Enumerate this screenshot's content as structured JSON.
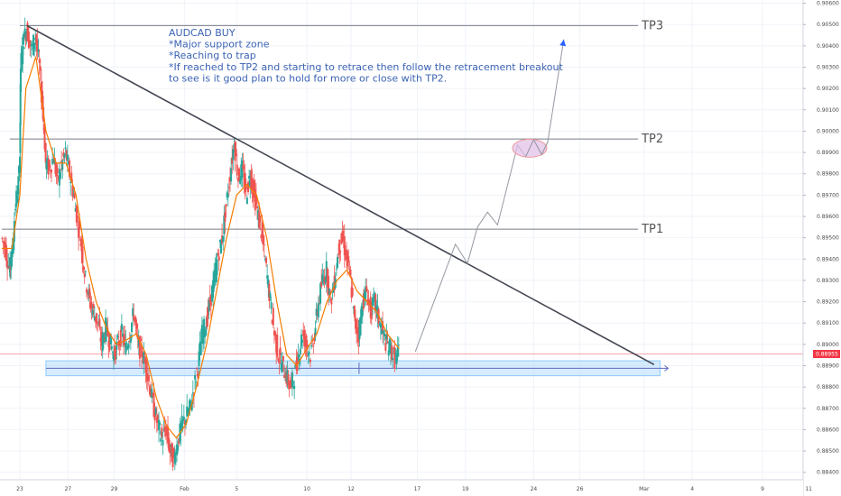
{
  "chart_data": {
    "type": "candlestick",
    "symbol": "AUDCAD",
    "annotation_lines": [
      "AUDCAD BUY",
      "*Major support zone",
      "*Reaching to trap",
      "*If reached to TP2 and starting to retrace then follow the retracement breakout",
      "to see is it good plan to hold for more or close with TP2."
    ],
    "y_axis": {
      "ylim": [
        0.88365,
        0.90615
      ],
      "ticks": [
        "0.90600",
        "0.90500",
        "0.90400",
        "0.90300",
        "0.90200",
        "0.90100",
        "0.90000",
        "0.89900",
        "0.89800",
        "0.89700",
        "0.89600",
        "0.89500",
        "0.89400",
        "0.89300",
        "0.89200",
        "0.89100",
        "0.89000",
        "0.88900",
        "0.88800",
        "0.88700",
        "0.88600",
        "0.88500",
        "0.88400"
      ],
      "current_price": "0.88955"
    },
    "x_axis": {
      "ticks": [
        {
          "label": "23",
          "x": 0.0
        },
        {
          "label": "27",
          "x": 2.4
        },
        {
          "label": "29",
          "x": 4.7
        },
        {
          "label": "Feb",
          "x": 8.2
        },
        {
          "label": "5",
          "x": 10.8
        },
        {
          "label": "10",
          "x": 14.3
        },
        {
          "label": "12",
          "x": 16.5
        },
        {
          "label": "17",
          "x": 19.8
        },
        {
          "label": "19",
          "x": 22.2
        },
        {
          "label": "24",
          "x": 25.6
        },
        {
          "label": "26",
          "x": 27.9
        },
        {
          "label": "Mar",
          "x": 31.1
        },
        {
          "label": "4",
          "x": 33.5
        },
        {
          "label": "9",
          "x": 37.0
        },
        {
          "label": "11",
          "x": 39.3
        }
      ]
    },
    "levels": [
      {
        "name": "TP3",
        "price": 0.90495
      },
      {
        "name": "TP2",
        "price": 0.89963
      },
      {
        "name": "TP1",
        "price": 0.8954
      }
    ],
    "support_zone": {
      "top": 0.88923,
      "bottom": 0.88853,
      "mid": 0.88888
    },
    "trendline": [
      {
        "x": 0.35,
        "y": 0.90495
      },
      {
        "x": 31.6,
        "y": 0.88905
      }
    ],
    "projection_path": [
      {
        "x": 19.7,
        "y": 0.88965
      },
      {
        "x": 21.7,
        "y": 0.8947
      },
      {
        "x": 22.3,
        "y": 0.8938
      },
      {
        "x": 22.8,
        "y": 0.8955
      },
      {
        "x": 23.3,
        "y": 0.8962
      },
      {
        "x": 23.8,
        "y": 0.8956
      },
      {
        "x": 24.8,
        "y": 0.89935
      },
      {
        "x": 25.2,
        "y": 0.8988
      },
      {
        "x": 25.6,
        "y": 0.8996
      },
      {
        "x": 26.0,
        "y": 0.8989
      },
      {
        "x": 26.3,
        "y": 0.8995
      },
      {
        "x": 27.1,
        "y": 0.9043
      }
    ],
    "ellipse": {
      "x": 25.4,
      "y": 0.8992
    },
    "price_series": [
      {
        "x": -0.9,
        "y": 0.895
      },
      {
        "x": -0.7,
        "y": 0.8945
      },
      {
        "x": -0.5,
        "y": 0.8935
      },
      {
        "x": -0.4,
        "y": 0.894
      },
      {
        "x": -0.2,
        "y": 0.8965
      },
      {
        "x": 0.0,
        "y": 0.898
      },
      {
        "x": 0.05,
        "y": 0.903
      },
      {
        "x": 0.2,
        "y": 0.9042
      },
      {
        "x": 0.35,
        "y": 0.9048
      },
      {
        "x": 0.6,
        "y": 0.9038
      },
      {
        "x": 0.8,
        "y": 0.9045
      },
      {
        "x": 1.0,
        "y": 0.903
      },
      {
        "x": 1.2,
        "y": 0.9005
      },
      {
        "x": 1.3,
        "y": 0.8985
      },
      {
        "x": 1.5,
        "y": 0.8982
      },
      {
        "x": 1.7,
        "y": 0.8988
      },
      {
        "x": 1.9,
        "y": 0.8976
      },
      {
        "x": 2.1,
        "y": 0.8984
      },
      {
        "x": 2.3,
        "y": 0.899
      },
      {
        "x": 2.5,
        "y": 0.898
      },
      {
        "x": 2.7,
        "y": 0.897
      },
      {
        "x": 2.9,
        "y": 0.8958
      },
      {
        "x": 3.1,
        "y": 0.8945
      },
      {
        "x": 3.3,
        "y": 0.893
      },
      {
        "x": 3.5,
        "y": 0.892
      },
      {
        "x": 3.7,
        "y": 0.8915
      },
      {
        "x": 3.9,
        "y": 0.891
      },
      {
        "x": 4.1,
        "y": 0.89
      },
      {
        "x": 4.3,
        "y": 0.8908
      },
      {
        "x": 4.5,
        "y": 0.8902
      },
      {
        "x": 4.7,
        "y": 0.8895
      },
      {
        "x": 4.9,
        "y": 0.89
      },
      {
        "x": 5.1,
        "y": 0.8905
      },
      {
        "x": 5.3,
        "y": 0.8898
      },
      {
        "x": 5.5,
        "y": 0.8905
      },
      {
        "x": 5.7,
        "y": 0.8915
      },
      {
        "x": 5.9,
        "y": 0.89
      },
      {
        "x": 6.1,
        "y": 0.8896
      },
      {
        "x": 6.3,
        "y": 0.889
      },
      {
        "x": 6.5,
        "y": 0.888
      },
      {
        "x": 6.7,
        "y": 0.887
      },
      {
        "x": 6.9,
        "y": 0.8862
      },
      {
        "x": 7.1,
        "y": 0.8856
      },
      {
        "x": 7.3,
        "y": 0.886
      },
      {
        "x": 7.5,
        "y": 0.885
      },
      {
        "x": 7.7,
        "y": 0.8846
      },
      {
        "x": 7.9,
        "y": 0.8855
      },
      {
        "x": 8.1,
        "y": 0.8862
      },
      {
        "x": 8.3,
        "y": 0.8866
      },
      {
        "x": 8.5,
        "y": 0.887
      },
      {
        "x": 8.7,
        "y": 0.888
      },
      {
        "x": 8.9,
        "y": 0.889
      },
      {
        "x": 9.1,
        "y": 0.8905
      },
      {
        "x": 9.3,
        "y": 0.891
      },
      {
        "x": 9.5,
        "y": 0.892
      },
      {
        "x": 9.7,
        "y": 0.893
      },
      {
        "x": 9.9,
        "y": 0.8942
      },
      {
        "x": 10.1,
        "y": 0.895
      },
      {
        "x": 10.3,
        "y": 0.8965
      },
      {
        "x": 10.5,
        "y": 0.898
      },
      {
        "x": 10.7,
        "y": 0.8995
      },
      {
        "x": 10.9,
        "y": 0.8978
      },
      {
        "x": 11.1,
        "y": 0.8982
      },
      {
        "x": 11.3,
        "y": 0.897
      },
      {
        "x": 11.5,
        "y": 0.898
      },
      {
        "x": 11.7,
        "y": 0.897
      },
      {
        "x": 11.9,
        "y": 0.896
      },
      {
        "x": 12.1,
        "y": 0.895
      },
      {
        "x": 12.3,
        "y": 0.8935
      },
      {
        "x": 12.5,
        "y": 0.892
      },
      {
        "x": 12.7,
        "y": 0.8905
      },
      {
        "x": 12.9,
        "y": 0.8895
      },
      {
        "x": 13.1,
        "y": 0.889
      },
      {
        "x": 13.3,
        "y": 0.8885
      },
      {
        "x": 13.5,
        "y": 0.888
      },
      {
        "x": 13.7,
        "y": 0.8885
      },
      {
        "x": 13.9,
        "y": 0.8895
      },
      {
        "x": 14.1,
        "y": 0.8905
      },
      {
        "x": 14.3,
        "y": 0.89
      },
      {
        "x": 14.5,
        "y": 0.8895
      },
      {
        "x": 14.7,
        "y": 0.8905
      },
      {
        "x": 14.9,
        "y": 0.892
      },
      {
        "x": 15.1,
        "y": 0.893
      },
      {
        "x": 15.3,
        "y": 0.8935
      },
      {
        "x": 15.5,
        "y": 0.892
      },
      {
        "x": 15.7,
        "y": 0.893
      },
      {
        "x": 15.9,
        "y": 0.8945
      },
      {
        "x": 16.1,
        "y": 0.895
      },
      {
        "x": 16.3,
        "y": 0.894
      },
      {
        "x": 16.5,
        "y": 0.893
      },
      {
        "x": 16.7,
        "y": 0.891
      },
      {
        "x": 16.9,
        "y": 0.8905
      },
      {
        "x": 17.1,
        "y": 0.892
      },
      {
        "x": 17.3,
        "y": 0.8925
      },
      {
        "x": 17.5,
        "y": 0.8915
      },
      {
        "x": 17.7,
        "y": 0.892
      },
      {
        "x": 17.9,
        "y": 0.8912
      },
      {
        "x": 18.1,
        "y": 0.8905
      },
      {
        "x": 18.3,
        "y": 0.89
      },
      {
        "x": 18.5,
        "y": 0.8898
      },
      {
        "x": 18.7,
        "y": 0.8893
      },
      {
        "x": 18.9,
        "y": 0.8896
      }
    ],
    "moving_average": [
      {
        "x": -0.9,
        "y": 0.8945
      },
      {
        "x": -0.4,
        "y": 0.8945
      },
      {
        "x": 0.0,
        "y": 0.897
      },
      {
        "x": 0.3,
        "y": 0.902
      },
      {
        "x": 0.8,
        "y": 0.9035
      },
      {
        "x": 1.3,
        "y": 0.9
      },
      {
        "x": 1.8,
        "y": 0.8985
      },
      {
        "x": 2.3,
        "y": 0.8985
      },
      {
        "x": 2.8,
        "y": 0.897
      },
      {
        "x": 3.3,
        "y": 0.894
      },
      {
        "x": 3.8,
        "y": 0.892
      },
      {
        "x": 4.3,
        "y": 0.8908
      },
      {
        "x": 4.8,
        "y": 0.89
      },
      {
        "x": 5.3,
        "y": 0.8902
      },
      {
        "x": 5.8,
        "y": 0.8905
      },
      {
        "x": 6.3,
        "y": 0.8895
      },
      {
        "x": 6.8,
        "y": 0.8875
      },
      {
        "x": 7.3,
        "y": 0.8862
      },
      {
        "x": 7.8,
        "y": 0.8856
      },
      {
        "x": 8.3,
        "y": 0.8863
      },
      {
        "x": 8.8,
        "y": 0.888
      },
      {
        "x": 9.3,
        "y": 0.89
      },
      {
        "x": 9.8,
        "y": 0.8925
      },
      {
        "x": 10.3,
        "y": 0.895
      },
      {
        "x": 10.8,
        "y": 0.897
      },
      {
        "x": 11.3,
        "y": 0.8975
      },
      {
        "x": 11.8,
        "y": 0.897
      },
      {
        "x": 12.3,
        "y": 0.895
      },
      {
        "x": 12.8,
        "y": 0.892
      },
      {
        "x": 13.3,
        "y": 0.8895
      },
      {
        "x": 13.8,
        "y": 0.889
      },
      {
        "x": 14.3,
        "y": 0.8898
      },
      {
        "x": 14.8,
        "y": 0.8905
      },
      {
        "x": 15.3,
        "y": 0.892
      },
      {
        "x": 15.8,
        "y": 0.893
      },
      {
        "x": 16.3,
        "y": 0.8935
      },
      {
        "x": 16.8,
        "y": 0.8925
      },
      {
        "x": 17.3,
        "y": 0.892
      },
      {
        "x": 17.8,
        "y": 0.8915
      },
      {
        "x": 18.3,
        "y": 0.8905
      },
      {
        "x": 18.9,
        "y": 0.8898
      }
    ],
    "colors": {
      "up": "#26a69a",
      "down": "#ef5350",
      "ma": "#f57c00",
      "trendline": "#434651",
      "level_line": "#787b86",
      "support_fill": "#bbdefb",
      "support_border": "#90caf9",
      "projection": "#9598a1",
      "arrow_head": "#2962ff",
      "ellipse_fill": "#e1bee7",
      "ellipse_stroke": "#ef9a9a",
      "current_price": "#f23645",
      "note_text": "#3c64b4",
      "grid": "#f0f3fa"
    }
  }
}
